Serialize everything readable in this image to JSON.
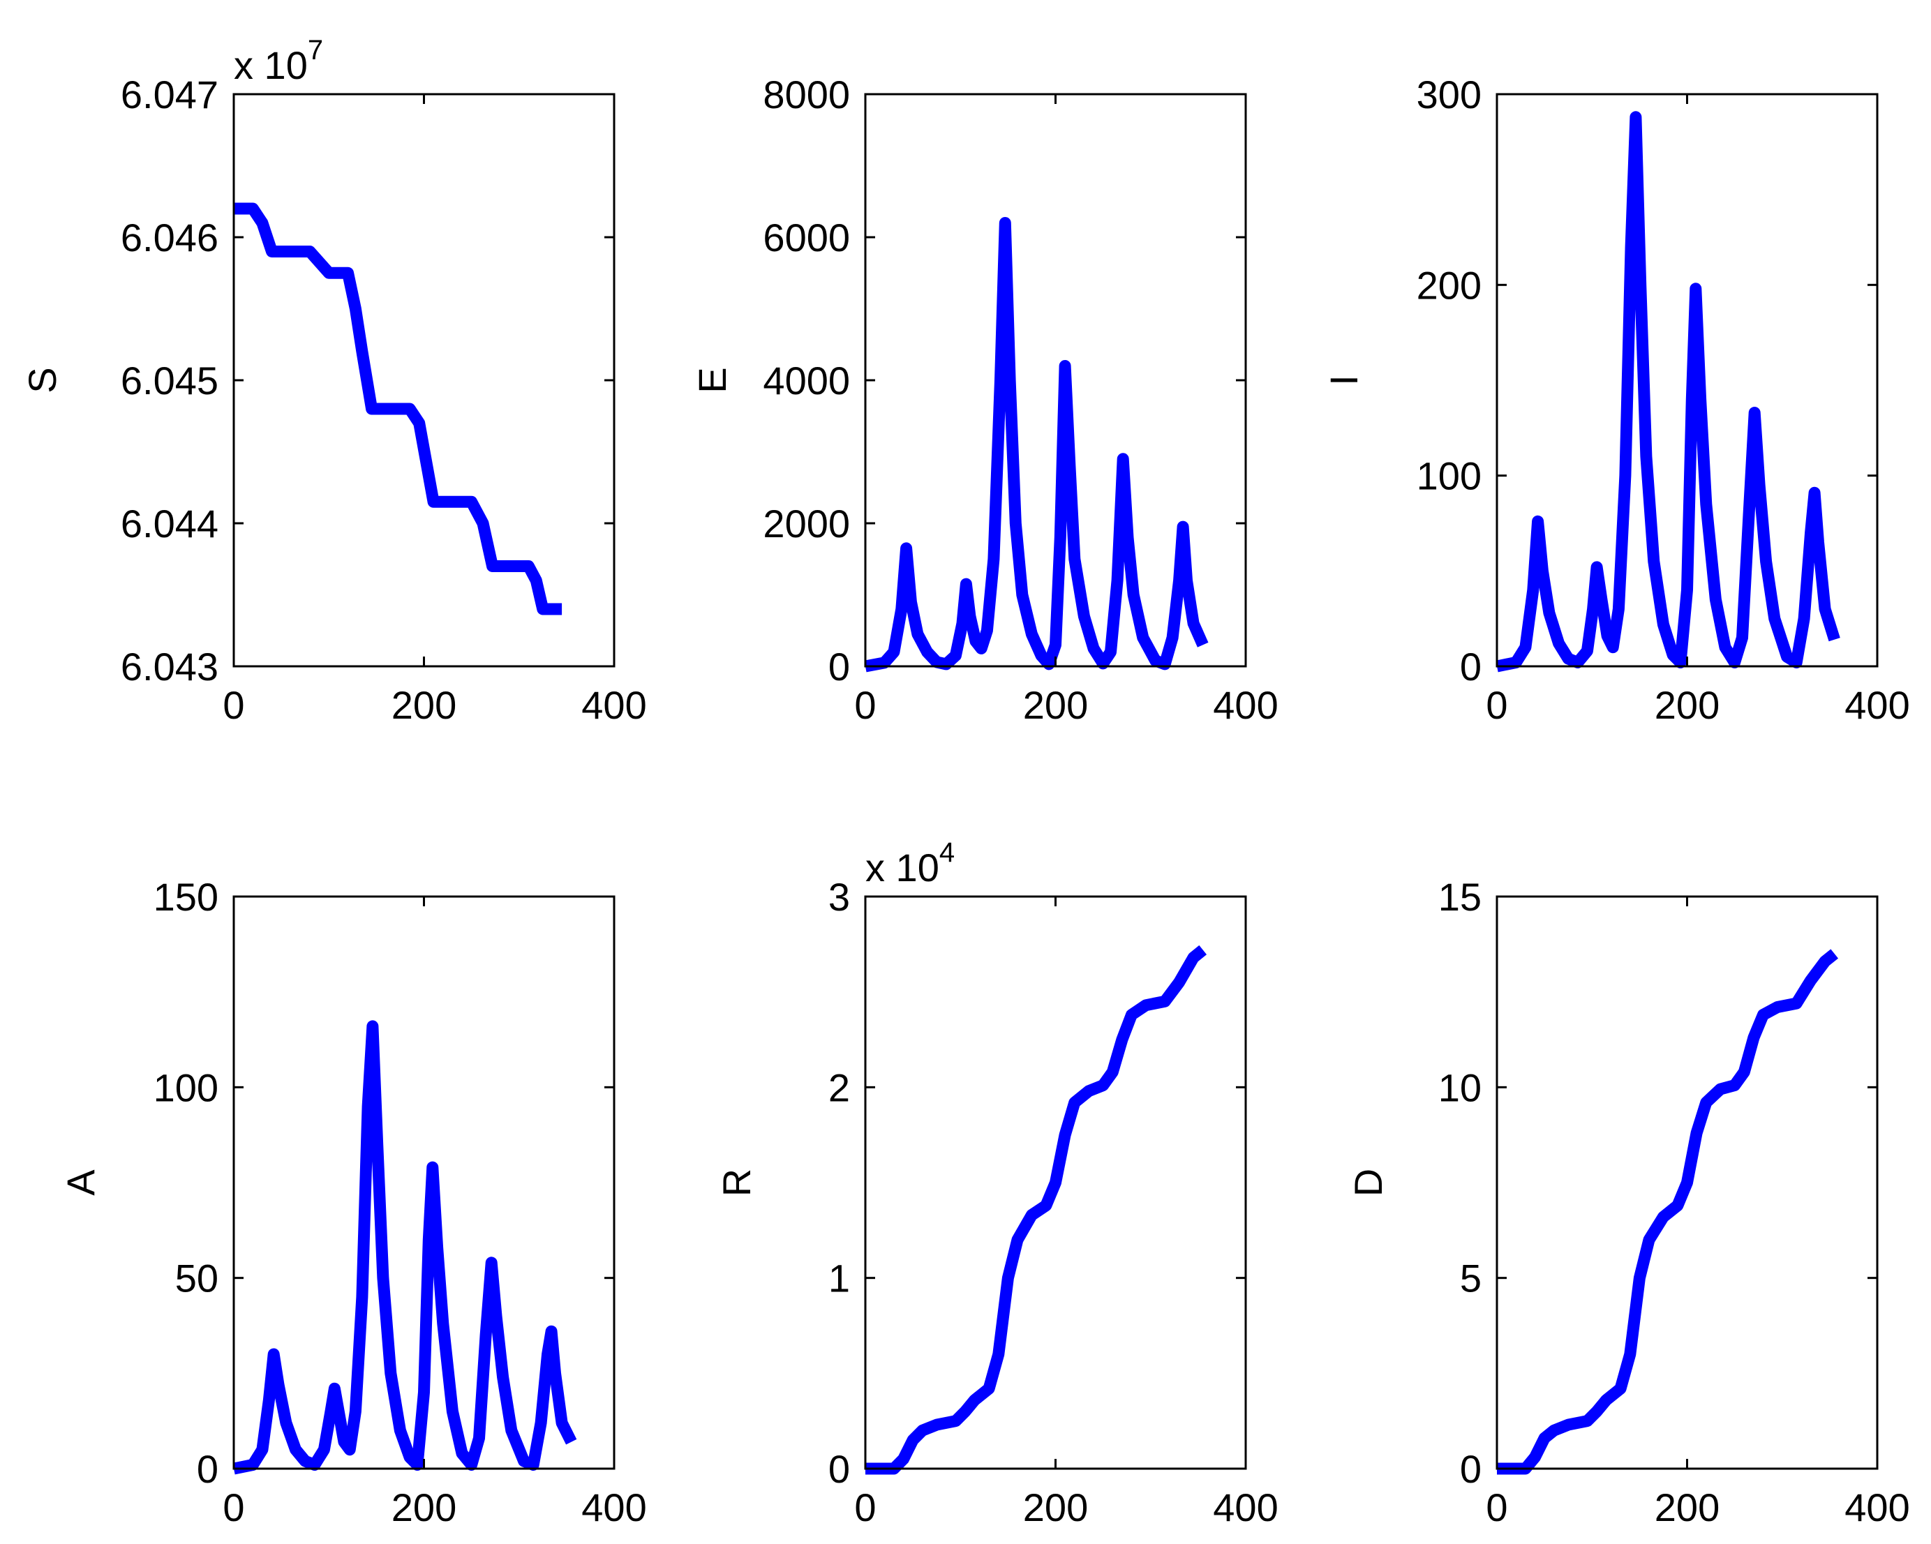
{
  "chart_data": [
    {
      "type": "line",
      "ylabel": "S",
      "exponent_label": "x 10",
      "exponent_power": "7",
      "xlim": [
        0,
        400
      ],
      "ylim": [
        6.043,
        6.047
      ],
      "xticks": [
        0,
        200,
        400
      ],
      "xtick_labels": [
        "0",
        "200",
        "400"
      ],
      "yticks": [
        6.043,
        6.044,
        6.045,
        6.046,
        6.047
      ],
      "ytick_labels": [
        "6.043",
        "6.044",
        "6.045",
        "6.046",
        "6.047"
      ],
      "color": "#0000ff",
      "series": [
        {
          "name": "S",
          "points": [
            [
              0,
              6.0462
            ],
            [
              20,
              6.0462
            ],
            [
              30,
              6.0461
            ],
            [
              40,
              6.0459
            ],
            [
              80,
              6.0459
            ],
            [
              100,
              6.04575
            ],
            [
              120,
              6.04575
            ],
            [
              128,
              6.0455
            ],
            [
              135,
              6.0452
            ],
            [
              145,
              6.0448
            ],
            [
              185,
              6.0448
            ],
            [
              195,
              6.0447
            ],
            [
              210,
              6.04415
            ],
            [
              250,
              6.04415
            ],
            [
              262,
              6.044
            ],
            [
              272,
              6.0437
            ],
            [
              310,
              6.0437
            ],
            [
              318,
              6.0436
            ],
            [
              325,
              6.0434
            ],
            [
              345,
              6.0434
            ]
          ]
        }
      ]
    },
    {
      "type": "line",
      "ylabel": "E",
      "xlim": [
        0,
        400
      ],
      "ylim": [
        0,
        8000
      ],
      "xticks": [
        0,
        200,
        400
      ],
      "xtick_labels": [
        "0",
        "200",
        "400"
      ],
      "yticks": [
        0,
        2000,
        4000,
        6000,
        8000
      ],
      "ytick_labels": [
        "0",
        "2000",
        "4000",
        "6000",
        "8000"
      ],
      "color": "#0000ff",
      "series": [
        {
          "name": "E",
          "points": [
            [
              0,
              0
            ],
            [
              20,
              50
            ],
            [
              30,
              200
            ],
            [
              38,
              800
            ],
            [
              43,
              1650
            ],
            [
              48,
              900
            ],
            [
              55,
              450
            ],
            [
              65,
              200
            ],
            [
              75,
              60
            ],
            [
              85,
              30
            ],
            [
              95,
              150
            ],
            [
              102,
              600
            ],
            [
              106,
              1150
            ],
            [
              110,
              700
            ],
            [
              116,
              350
            ],
            [
              122,
              250
            ],
            [
              128,
              500
            ],
            [
              135,
              1500
            ],
            [
              142,
              4000
            ],
            [
              147,
              6200
            ],
            [
              152,
              4000
            ],
            [
              158,
              2000
            ],
            [
              165,
              1000
            ],
            [
              175,
              450
            ],
            [
              185,
              150
            ],
            [
              193,
              30
            ],
            [
              200,
              300
            ],
            [
              205,
              1800
            ],
            [
              210,
              4200
            ],
            [
              215,
              2800
            ],
            [
              220,
              1500
            ],
            [
              230,
              700
            ],
            [
              240,
              250
            ],
            [
              250,
              40
            ],
            [
              258,
              200
            ],
            [
              265,
              1200
            ],
            [
              271,
              2900
            ],
            [
              276,
              1800
            ],
            [
              282,
              1000
            ],
            [
              292,
              400
            ],
            [
              305,
              80
            ],
            [
              315,
              30
            ],
            [
              323,
              400
            ],
            [
              330,
              1200
            ],
            [
              334,
              1950
            ],
            [
              338,
              1200
            ],
            [
              345,
              600
            ],
            [
              355,
              300
            ]
          ]
        }
      ]
    },
    {
      "type": "line",
      "ylabel": "I",
      "xlim": [
        0,
        400
      ],
      "ylim": [
        0,
        300
      ],
      "xticks": [
        0,
        200,
        400
      ],
      "xtick_labels": [
        "0",
        "200",
        "400"
      ],
      "yticks": [
        0,
        100,
        200,
        300
      ],
      "ytick_labels": [
        "0",
        "100",
        "200",
        "300"
      ],
      "color": "#0000ff",
      "series": [
        {
          "name": "I",
          "points": [
            [
              0,
              0
            ],
            [
              20,
              2
            ],
            [
              30,
              10
            ],
            [
              38,
              40
            ],
            [
              43,
              76
            ],
            [
              48,
              50
            ],
            [
              55,
              28
            ],
            [
              65,
              12
            ],
            [
              75,
              4
            ],
            [
              85,
              2
            ],
            [
              95,
              8
            ],
            [
              101,
              30
            ],
            [
              105,
              52
            ],
            [
              110,
              35
            ],
            [
              116,
              16
            ],
            [
              122,
              10
            ],
            [
              128,
              30
            ],
            [
              135,
              100
            ],
            [
              141,
              220
            ],
            [
              146,
              288
            ],
            [
              151,
              200
            ],
            [
              157,
              110
            ],
            [
              165,
              55
            ],
            [
              175,
              22
            ],
            [
              185,
              6
            ],
            [
              193,
              2
            ],
            [
              200,
              40
            ],
            [
              205,
              140
            ],
            [
              209,
              198
            ],
            [
              214,
              140
            ],
            [
              220,
              85
            ],
            [
              230,
              35
            ],
            [
              240,
              10
            ],
            [
              250,
              2
            ],
            [
              258,
              15
            ],
            [
              265,
              80
            ],
            [
              271,
              133
            ],
            [
              276,
              95
            ],
            [
              283,
              55
            ],
            [
              292,
              25
            ],
            [
              305,
              5
            ],
            [
              315,
              2
            ],
            [
              323,
              25
            ],
            [
              330,
              70
            ],
            [
              334,
              91
            ],
            [
              338,
              65
            ],
            [
              345,
              30
            ],
            [
              355,
              14
            ]
          ]
        }
      ]
    },
    {
      "type": "line",
      "ylabel": "A",
      "xlim": [
        0,
        400
      ],
      "ylim": [
        0,
        150
      ],
      "xticks": [
        0,
        200,
        400
      ],
      "xtick_labels": [
        "0",
        "200",
        "400"
      ],
      "yticks": [
        0,
        50,
        100,
        150
      ],
      "ytick_labels": [
        "0",
        "50",
        "100",
        "150"
      ],
      "color": "#0000ff",
      "series": [
        {
          "name": "A",
          "points": [
            [
              0,
              0
            ],
            [
              20,
              1
            ],
            [
              30,
              5
            ],
            [
              37,
              18
            ],
            [
              42,
              30
            ],
            [
              47,
              22
            ],
            [
              55,
              12
            ],
            [
              65,
              5
            ],
            [
              75,
              2
            ],
            [
              85,
              1
            ],
            [
              95,
              5
            ],
            [
              102,
              15
            ],
            [
              106,
              21
            ],
            [
              111,
              14
            ],
            [
              116,
              7
            ],
            [
              122,
              5
            ],
            [
              128,
              15
            ],
            [
              135,
              45
            ],
            [
              141,
              95
            ],
            [
              146,
              116
            ],
            [
              151,
              85
            ],
            [
              157,
              50
            ],
            [
              165,
              25
            ],
            [
              175,
              10
            ],
            [
              185,
              3
            ],
            [
              193,
              1
            ],
            [
              200,
              20
            ],
            [
              205,
              60
            ],
            [
              209,
              79
            ],
            [
              214,
              58
            ],
            [
              220,
              38
            ],
            [
              230,
              15
            ],
            [
              240,
              4
            ],
            [
              250,
              1
            ],
            [
              258,
              8
            ],
            [
              265,
              35
            ],
            [
              271,
              54
            ],
            [
              276,
              40
            ],
            [
              283,
              24
            ],
            [
              292,
              10
            ],
            [
              305,
              2
            ],
            [
              315,
              1
            ],
            [
              323,
              12
            ],
            [
              330,
              30
            ],
            [
              334,
              36
            ],
            [
              338,
              25
            ],
            [
              345,
              12
            ],
            [
              355,
              7
            ]
          ]
        }
      ]
    },
    {
      "type": "line",
      "ylabel": "R",
      "exponent_label": "x 10",
      "exponent_power": "4",
      "xlim": [
        0,
        400
      ],
      "ylim": [
        0,
        3
      ],
      "xticks": [
        0,
        200,
        400
      ],
      "xtick_labels": [
        "0",
        "200",
        "400"
      ],
      "yticks": [
        0,
        1,
        2,
        3
      ],
      "ytick_labels": [
        "0",
        "1",
        "2",
        "3"
      ],
      "color": "#0000ff",
      "series": [
        {
          "name": "R",
          "points": [
            [
              0,
              0
            ],
            [
              30,
              0
            ],
            [
              40,
              0.05
            ],
            [
              50,
              0.15
            ],
            [
              60,
              0.2
            ],
            [
              75,
              0.23
            ],
            [
              95,
              0.25
            ],
            [
              105,
              0.3
            ],
            [
              115,
              0.36
            ],
            [
              130,
              0.42
            ],
            [
              140,
              0.6
            ],
            [
              150,
              1.0
            ],
            [
              160,
              1.2
            ],
            [
              175,
              1.33
            ],
            [
              190,
              1.38
            ],
            [
              200,
              1.5
            ],
            [
              210,
              1.75
            ],
            [
              220,
              1.92
            ],
            [
              235,
              1.98
            ],
            [
              250,
              2.01
            ],
            [
              260,
              2.08
            ],
            [
              270,
              2.25
            ],
            [
              280,
              2.38
            ],
            [
              295,
              2.43
            ],
            [
              315,
              2.45
            ],
            [
              330,
              2.55
            ],
            [
              345,
              2.68
            ],
            [
              355,
              2.72
            ]
          ]
        }
      ]
    },
    {
      "type": "line",
      "ylabel": "D",
      "xlim": [
        0,
        400
      ],
      "ylim": [
        0,
        15
      ],
      "xticks": [
        0,
        200,
        400
      ],
      "xtick_labels": [
        "0",
        "200",
        "400"
      ],
      "yticks": [
        0,
        5,
        10,
        15
      ],
      "ytick_labels": [
        "0",
        "5",
        "10",
        "15"
      ],
      "color": "#0000ff",
      "series": [
        {
          "name": "D",
          "points": [
            [
              0,
              0
            ],
            [
              30,
              0
            ],
            [
              40,
              0.3
            ],
            [
              50,
              0.8
            ],
            [
              60,
              1.0
            ],
            [
              75,
              1.15
            ],
            [
              95,
              1.25
            ],
            [
              105,
              1.5
            ],
            [
              115,
              1.8
            ],
            [
              130,
              2.1
            ],
            [
              140,
              3.0
            ],
            [
              150,
              5.0
            ],
            [
              160,
              6.0
            ],
            [
              175,
              6.6
            ],
            [
              190,
              6.9
            ],
            [
              200,
              7.5
            ],
            [
              210,
              8.8
            ],
            [
              220,
              9.6
            ],
            [
              235,
              9.95
            ],
            [
              250,
              10.05
            ],
            [
              260,
              10.4
            ],
            [
              270,
              11.3
            ],
            [
              280,
              11.9
            ],
            [
              295,
              12.1
            ],
            [
              315,
              12.2
            ],
            [
              330,
              12.8
            ],
            [
              345,
              13.3
            ],
            [
              355,
              13.5
            ]
          ]
        }
      ]
    }
  ]
}
